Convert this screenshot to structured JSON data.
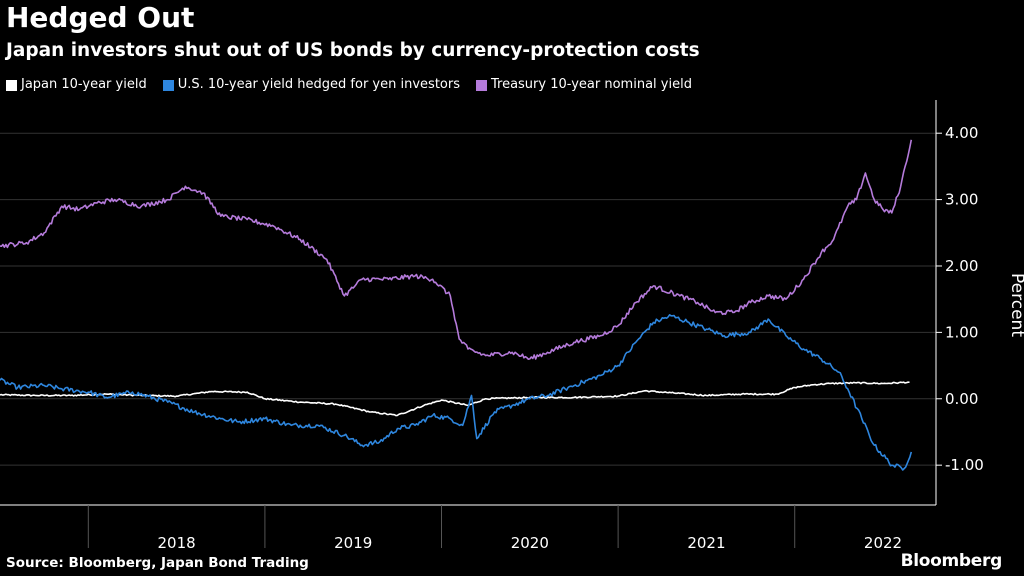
{
  "header": {
    "title": "Hedged Out",
    "subtitle": "Japan investors shut out of US bonds by currency-protection costs"
  },
  "footer": {
    "source": "Source: Bloomberg, Japan Bond Trading",
    "brand": "Bloomberg"
  },
  "chart_data": {
    "type": "line",
    "title": "Hedged Out",
    "subtitle": "Japan investors shut out of US bonds by currency-protection costs",
    "xlabel": "",
    "ylabel": "Percent",
    "y_axis_side": "right",
    "ylim": [
      -1.6,
      4.5
    ],
    "xlim": [
      2017.5,
      2022.8
    ],
    "yticks": [
      4.0,
      3.0,
      2.0,
      1.0,
      0.0,
      -1.0
    ],
    "ytick_labels": [
      "4.00",
      "3.00",
      "2.00",
      "1.00",
      "0.00",
      "-1.00"
    ],
    "year_labels": [
      "2018",
      "2019",
      "2020",
      "2021",
      "2022"
    ],
    "legend_position": "top-left",
    "series": [
      {
        "name": "Japan 10-year yield",
        "color": "#ffffff",
        "points": [
          [
            2017.5,
            0.06
          ],
          [
            2017.7,
            0.05
          ],
          [
            2017.9,
            0.05
          ],
          [
            2018.1,
            0.07
          ],
          [
            2018.3,
            0.05
          ],
          [
            2018.5,
            0.04
          ],
          [
            2018.7,
            0.11
          ],
          [
            2018.9,
            0.1
          ],
          [
            2019.0,
            0.0
          ],
          [
            2019.2,
            -0.05
          ],
          [
            2019.4,
            -0.08
          ],
          [
            2019.6,
            -0.2
          ],
          [
            2019.75,
            -0.25
          ],
          [
            2019.9,
            -0.1
          ],
          [
            2020.0,
            -0.02
          ],
          [
            2020.15,
            -0.1
          ],
          [
            2020.25,
            0.0
          ],
          [
            2020.5,
            0.02
          ],
          [
            2020.75,
            0.02
          ],
          [
            2021.0,
            0.04
          ],
          [
            2021.15,
            0.12
          ],
          [
            2021.3,
            0.09
          ],
          [
            2021.5,
            0.05
          ],
          [
            2021.7,
            0.07
          ],
          [
            2021.9,
            0.07
          ],
          [
            2022.0,
            0.17
          ],
          [
            2022.1,
            0.21
          ],
          [
            2022.2,
            0.23
          ],
          [
            2022.35,
            0.24
          ],
          [
            2022.5,
            0.23
          ],
          [
            2022.65,
            0.25
          ]
        ]
      },
      {
        "name": "U.S. 10-year yield hedged for yen investors",
        "color": "#2e86de",
        "points": [
          [
            2017.5,
            0.28
          ],
          [
            2017.6,
            0.17
          ],
          [
            2017.75,
            0.2
          ],
          [
            2017.85,
            0.15
          ],
          [
            2018.0,
            0.1
          ],
          [
            2018.1,
            0.02
          ],
          [
            2018.25,
            0.1
          ],
          [
            2018.45,
            -0.05
          ],
          [
            2018.6,
            -0.2
          ],
          [
            2018.75,
            -0.3
          ],
          [
            2018.85,
            -0.35
          ],
          [
            2019.0,
            -0.3
          ],
          [
            2019.15,
            -0.4
          ],
          [
            2019.3,
            -0.4
          ],
          [
            2019.45,
            -0.55
          ],
          [
            2019.55,
            -0.7
          ],
          [
            2019.65,
            -0.65
          ],
          [
            2019.75,
            -0.45
          ],
          [
            2019.85,
            -0.4
          ],
          [
            2019.95,
            -0.25
          ],
          [
            2020.05,
            -0.3
          ],
          [
            2020.12,
            -0.4
          ],
          [
            2020.17,
            0.05
          ],
          [
            2020.2,
            -0.6
          ],
          [
            2020.3,
            -0.2
          ],
          [
            2020.4,
            -0.1
          ],
          [
            2020.5,
            0.0
          ],
          [
            2020.6,
            0.05
          ],
          [
            2020.7,
            0.15
          ],
          [
            2020.8,
            0.25
          ],
          [
            2020.9,
            0.35
          ],
          [
            2021.0,
            0.5
          ],
          [
            2021.1,
            0.85
          ],
          [
            2021.2,
            1.15
          ],
          [
            2021.3,
            1.25
          ],
          [
            2021.4,
            1.15
          ],
          [
            2021.5,
            1.05
          ],
          [
            2021.6,
            0.95
          ],
          [
            2021.75,
            1.0
          ],
          [
            2021.85,
            1.2
          ],
          [
            2021.95,
            0.95
          ],
          [
            2022.05,
            0.75
          ],
          [
            2022.15,
            0.6
          ],
          [
            2022.25,
            0.4
          ],
          [
            2022.3,
            0.15
          ],
          [
            2022.38,
            -0.3
          ],
          [
            2022.45,
            -0.7
          ],
          [
            2022.55,
            -1.0
          ],
          [
            2022.62,
            -1.05
          ],
          [
            2022.66,
            -0.8
          ]
        ]
      },
      {
        "name": "Treasury 10-year nominal yield",
        "color": "#b57bdb",
        "points": [
          [
            2017.5,
            2.3
          ],
          [
            2017.65,
            2.35
          ],
          [
            2017.75,
            2.5
          ],
          [
            2017.85,
            2.9
          ],
          [
            2017.95,
            2.85
          ],
          [
            2018.05,
            2.95
          ],
          [
            2018.15,
            3.0
          ],
          [
            2018.3,
            2.9
          ],
          [
            2018.45,
            3.0
          ],
          [
            2018.55,
            3.2
          ],
          [
            2018.65,
            3.1
          ],
          [
            2018.75,
            2.75
          ],
          [
            2018.9,
            2.7
          ],
          [
            2019.05,
            2.6
          ],
          [
            2019.2,
            2.4
          ],
          [
            2019.35,
            2.1
          ],
          [
            2019.45,
            1.55
          ],
          [
            2019.55,
            1.8
          ],
          [
            2019.7,
            1.8
          ],
          [
            2019.85,
            1.85
          ],
          [
            2019.95,
            1.8
          ],
          [
            2020.05,
            1.55
          ],
          [
            2020.1,
            0.9
          ],
          [
            2020.15,
            0.75
          ],
          [
            2020.25,
            0.65
          ],
          [
            2020.4,
            0.7
          ],
          [
            2020.5,
            0.6
          ],
          [
            2020.6,
            0.7
          ],
          [
            2020.75,
            0.85
          ],
          [
            2020.9,
            0.95
          ],
          [
            2021.0,
            1.1
          ],
          [
            2021.1,
            1.45
          ],
          [
            2021.2,
            1.7
          ],
          [
            2021.35,
            1.55
          ],
          [
            2021.45,
            1.45
          ],
          [
            2021.55,
            1.3
          ],
          [
            2021.65,
            1.3
          ],
          [
            2021.75,
            1.45
          ],
          [
            2021.85,
            1.55
          ],
          [
            2021.95,
            1.5
          ],
          [
            2022.05,
            1.8
          ],
          [
            2022.15,
            2.2
          ],
          [
            2022.22,
            2.4
          ],
          [
            2022.3,
            2.9
          ],
          [
            2022.35,
            3.0
          ],
          [
            2022.4,
            3.4
          ],
          [
            2022.45,
            3.0
          ],
          [
            2022.5,
            2.85
          ],
          [
            2022.55,
            2.8
          ],
          [
            2022.6,
            3.2
          ],
          [
            2022.66,
            3.9
          ]
        ]
      }
    ]
  }
}
